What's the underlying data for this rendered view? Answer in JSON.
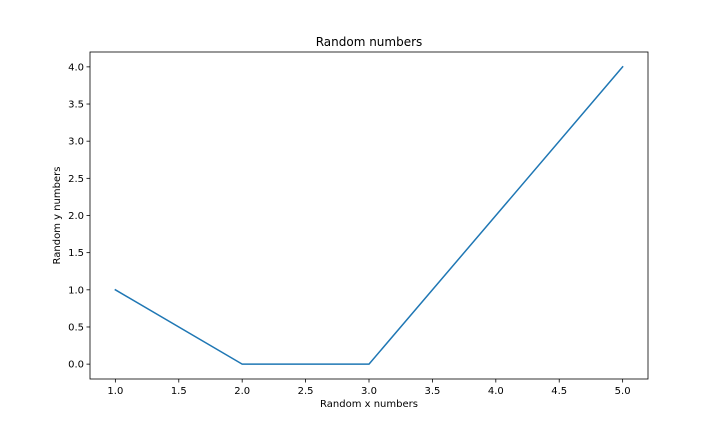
{
  "chart_data": {
    "type": "line",
    "title": "Random numbers",
    "xlabel": "Random x numbers",
    "ylabel": "Random y numbers",
    "xlim": [
      0.8,
      5.2
    ],
    "ylim": [
      -0.2,
      4.2
    ],
    "xticks": [
      "1.0",
      "1.5",
      "2.0",
      "2.5",
      "3.0",
      "3.5",
      "4.0",
      "4.5",
      "5.0"
    ],
    "yticks": [
      "0.0",
      "0.5",
      "1.0",
      "1.5",
      "2.0",
      "2.5",
      "3.0",
      "3.5",
      "4.0"
    ],
    "grid": false,
    "series": [
      {
        "x": [
          1,
          2,
          3,
          4,
          5
        ],
        "y": [
          1,
          0,
          0,
          2,
          4
        ],
        "color": "#1f77b4"
      }
    ]
  }
}
